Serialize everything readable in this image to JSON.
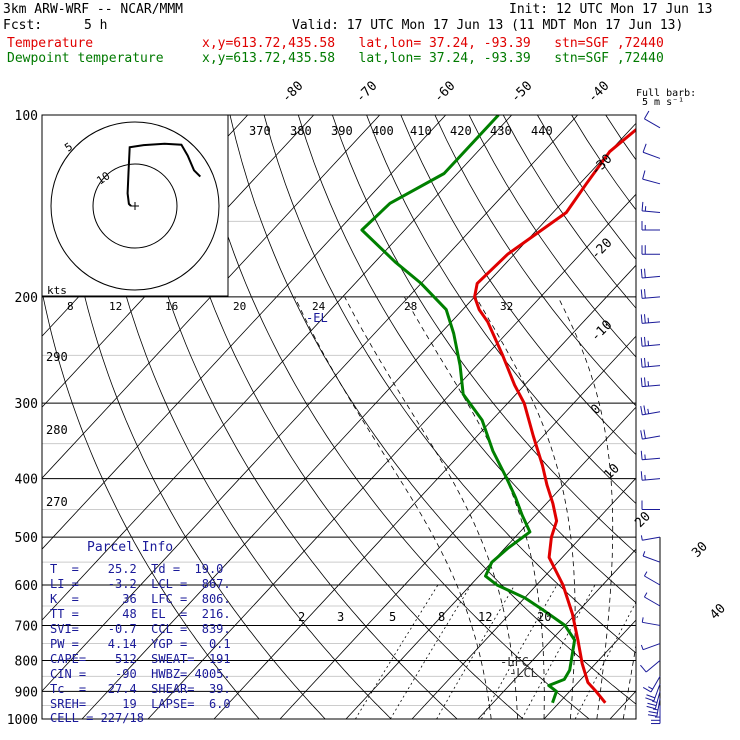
{
  "header": {
    "model": "3km ARW-WRF -- NCAR/MMM",
    "init": "Init: 12 UTC Mon 17 Jun 13",
    "fcst_label": "Fcst:",
    "fcst_value": "5 h",
    "valid": "Valid: 17 UTC Mon 17 Jun 13 (11 MDT Mon 17 Jun 13)",
    "temp_label": "Temperature",
    "temp_info": "x,y=613.72,435.58   lat,lon= 37.24, -93.39   stn=SGF ,72440",
    "dew_label": "Dewpoint temperature",
    "dew_info": "x,y=613.72,435.58   lat,lon= 37.24, -93.39   stn=SGF ,72440",
    "barb_title_1": "Full barb:",
    "barb_title_2": "5 m s⁻¹"
  },
  "parcel": {
    "title": "Parcel Info",
    "rows": [
      "T  =    25.2  Td =  19.0",
      "LI =    -3.2  LCL =  867.",
      "K  =      36  LFC =  806.",
      "TT =      48  EL  =  216.",
      "SVI=    -0.7  CCL =  839.",
      "PW =    4.14  YGP =   0.1",
      "CAPE=    512  SWEAT=  191",
      "CIN =    -90  HWBZ= 4005.",
      "Tc  =   27.4  SHEAR=  39.",
      "SREH=     19  LAPSE=  6.0",
      "CELL = 227/18"
    ]
  },
  "hodograph": {
    "units_label": "kts",
    "ring_labels": [
      "5",
      "10"
    ],
    "speed_labels": [
      "8",
      "12",
      "16",
      "20",
      "24",
      "28",
      "32"
    ]
  },
  "levels": {
    "el": "-EL",
    "lfc": "-LFC",
    "lcl": "-LCL"
  },
  "chart_data": {
    "type": "line",
    "title": "",
    "xlabel": "",
    "ylabel": "",
    "y_scale": "log-pressure",
    "ylim": [
      1000,
      100
    ],
    "pressure_ticks": [
      "100",
      "200",
      "300",
      "400",
      "500",
      "600",
      "700",
      "800",
      "900",
      "1000"
    ],
    "isotherm_labels": [
      "-80",
      "-70",
      "-60",
      "-50",
      "-40",
      "-30",
      "-20",
      "-10",
      "0",
      "10",
      "20",
      "30",
      "40"
    ],
    "theta_labels": [
      "370",
      "380",
      "390",
      "400",
      "410",
      "420",
      "430",
      "440"
    ],
    "theta_low_labels": [
      "290",
      "280",
      "270"
    ],
    "mixing_ratio_labels": [
      "2",
      "3",
      "5",
      "8",
      "12",
      "20"
    ],
    "series": [
      {
        "name": "Temperature",
        "color": "#e00000",
        "pressure": [
          940,
          900,
          870,
          810,
          740,
          670,
          600,
          540,
          500,
          470,
          440,
          410,
          380,
          340,
          300,
          280,
          250,
          220,
          210,
          200,
          190,
          170,
          145,
          130,
          115,
          100
        ],
        "temp_c": [
          27.0,
          24.0,
          21.5,
          18.0,
          14.0,
          9.5,
          4.0,
          -2.0,
          -4.5,
          -6.0,
          -9.0,
          -12.5,
          -16.0,
          -21.5,
          -27.5,
          -31.5,
          -37.5,
          -44.5,
          -47.5,
          -50.0,
          -51.5,
          -51.0,
          -48.0,
          -49.0,
          -50.0,
          -48.5
        ]
      },
      {
        "name": "Dewpoint temperature",
        "color": "#008000",
        "pressure": [
          940,
          900,
          880,
          860,
          830,
          790,
          740,
          700,
          660,
          630,
          600,
          580,
          550,
          520,
          490,
          460,
          430,
          400,
          360,
          320,
          290,
          260,
          230,
          210,
          190,
          175,
          155,
          140,
          125,
          100
        ],
        "temp_c": [
          19.0,
          18.0,
          16.0,
          17.5,
          17.0,
          15.5,
          13.5,
          10.0,
          4.5,
          0.0,
          -6.0,
          -9.0,
          -10.0,
          -9.5,
          -8.5,
          -12.0,
          -15.5,
          -19.5,
          -25.5,
          -31.5,
          -38.0,
          -42.5,
          -48.0,
          -52.5,
          -60.0,
          -67.0,
          -76.5,
          -76.0,
          -72.0,
          -72.0
        ]
      }
    ],
    "hodograph_trace_uv": [
      [
        0,
        0
      ],
      [
        -0.5,
        0.5
      ],
      [
        -0.8,
        3.0
      ],
      [
        -0.6,
        8.0
      ],
      [
        -0.3,
        14.0
      ],
      [
        3.0,
        14.5
      ],
      [
        8.0,
        14.8
      ],
      [
        12.0,
        14.6
      ],
      [
        13.5,
        12.0
      ],
      [
        15.0,
        8.5
      ],
      [
        16.5,
        7.0
      ]
    ],
    "wind_barbs": [
      {
        "p": 950,
        "speed": 25,
        "dir": 180
      },
      {
        "p": 925,
        "speed": 25,
        "dir": 190
      },
      {
        "p": 900,
        "speed": 25,
        "dir": 195
      },
      {
        "p": 875,
        "speed": 20,
        "dir": 200
      },
      {
        "p": 850,
        "speed": 15,
        "dir": 210
      },
      {
        "p": 800,
        "speed": 10,
        "dir": 230
      },
      {
        "p": 750,
        "speed": 5,
        "dir": 250
      },
      {
        "p": 700,
        "speed": 5,
        "dir": 280
      },
      {
        "p": 650,
        "speed": 5,
        "dir": 300
      },
      {
        "p": 600,
        "speed": 5,
        "dir": 300
      },
      {
        "p": 550,
        "speed": 5,
        "dir": 290
      },
      {
        "p": 500,
        "speed": 5,
        "dir": 260
      },
      {
        "p": 450,
        "speed": 10,
        "dir": 270
      },
      {
        "p": 400,
        "speed": 15,
        "dir": 265
      },
      {
        "p": 370,
        "speed": 15,
        "dir": 265
      },
      {
        "p": 340,
        "speed": 20,
        "dir": 260
      },
      {
        "p": 310,
        "speed": 25,
        "dir": 260
      },
      {
        "p": 280,
        "speed": 25,
        "dir": 265
      },
      {
        "p": 260,
        "speed": 25,
        "dir": 265
      },
      {
        "p": 240,
        "speed": 25,
        "dir": 265
      },
      {
        "p": 220,
        "speed": 25,
        "dir": 265
      },
      {
        "p": 200,
        "speed": 20,
        "dir": 265
      },
      {
        "p": 185,
        "speed": 20,
        "dir": 265
      },
      {
        "p": 170,
        "speed": 20,
        "dir": 270
      },
      {
        "p": 155,
        "speed": 15,
        "dir": 270
      },
      {
        "p": 145,
        "speed": 15,
        "dir": 275
      },
      {
        "p": 130,
        "speed": 10,
        "dir": 285
      },
      {
        "p": 118,
        "speed": 10,
        "dir": 290
      },
      {
        "p": 105,
        "speed": 10,
        "dir": 300
      }
    ]
  }
}
